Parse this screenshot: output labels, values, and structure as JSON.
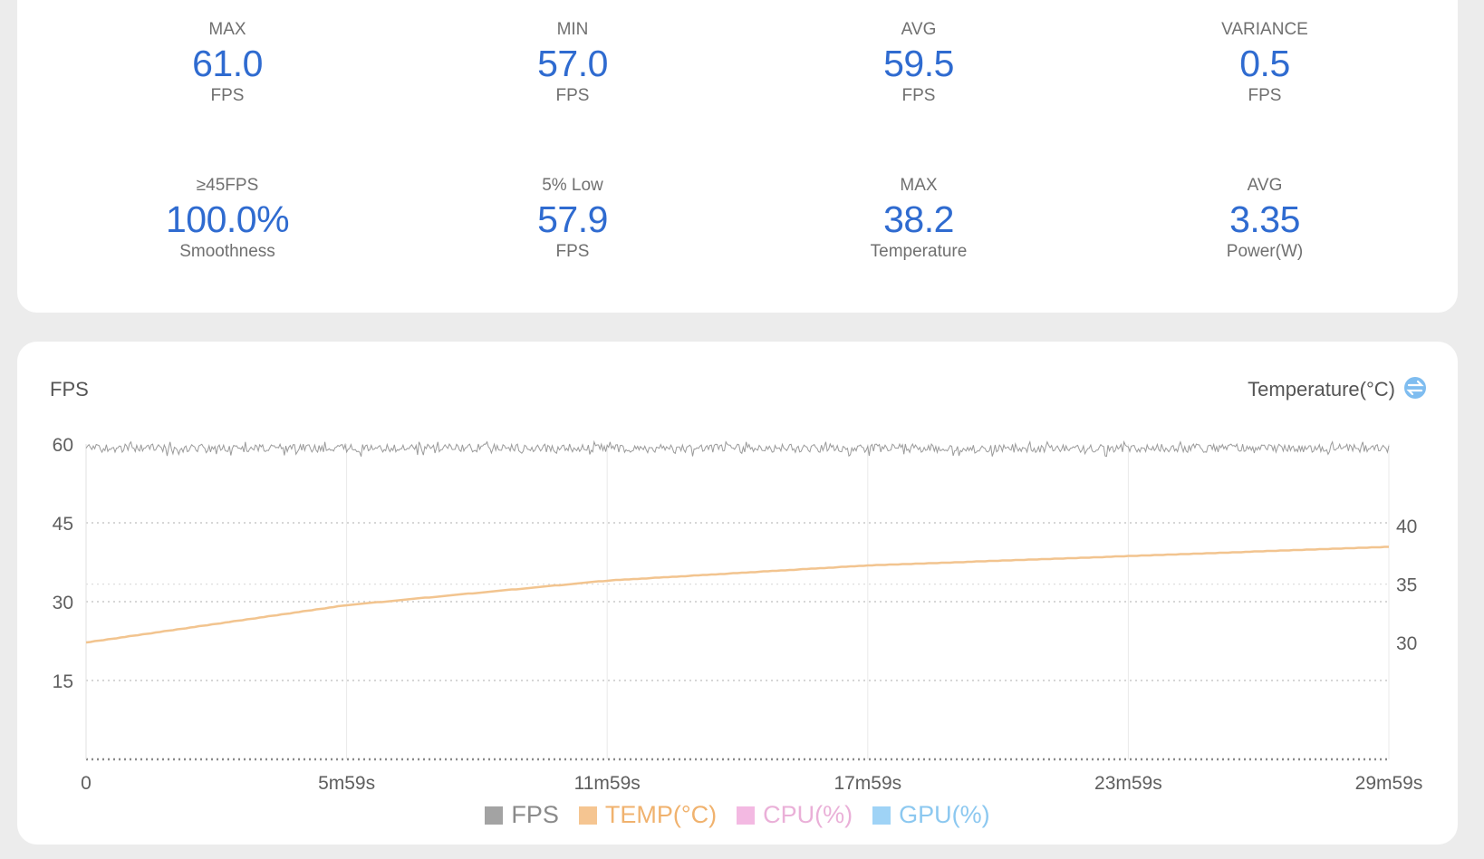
{
  "stats": [
    {
      "label": "MAX",
      "value": "61.0",
      "unit": "FPS"
    },
    {
      "label": "MIN",
      "value": "57.0",
      "unit": "FPS"
    },
    {
      "label": "AVG",
      "value": "59.5",
      "unit": "FPS"
    },
    {
      "label": "VARIANCE",
      "value": "0.5",
      "unit": "FPS"
    },
    {
      "label": "≥45FPS",
      "value": "100.0%",
      "unit": "Smoothness"
    },
    {
      "label": "5% Low",
      "value": "57.9",
      "unit": "FPS"
    },
    {
      "label": "MAX",
      "value": "38.2",
      "unit": "Temperature"
    },
    {
      "label": "AVG",
      "value": "3.35",
      "unit": "Power(W)"
    }
  ],
  "chart": {
    "left_title": "FPS",
    "right_title": "Temperature(°C)",
    "switch_icon": "swap-circle-icon"
  },
  "chart_data": {
    "type": "line",
    "x_ticks": [
      "0",
      "5m59s",
      "11m59s",
      "17m59s",
      "23m59s",
      "29m59s"
    ],
    "x_range_seconds": [
      0,
      1799
    ],
    "y_left": {
      "label": "FPS",
      "ticks": [
        60,
        45,
        30,
        15
      ],
      "range": [
        0,
        60
      ]
    },
    "y_right": {
      "label": "Temperature(°C)",
      "ticks": [
        40,
        35,
        30
      ],
      "range": [
        20,
        47
      ]
    },
    "series": [
      {
        "name": "FPS",
        "axis": "left",
        "color": "#9a9a9a",
        "approx_value": 59.5,
        "min": 57.0,
        "max": 61.0
      },
      {
        "name": "TEMP(°C)",
        "axis": "right",
        "color": "#f2c48f",
        "x_minutes": [
          0,
          6,
          12,
          18,
          24,
          30
        ],
        "values": [
          30.0,
          33.2,
          35.3,
          36.6,
          37.4,
          38.2
        ]
      }
    ],
    "legend": [
      {
        "name": "FPS",
        "color": "#a3a3a3",
        "text_color": "#8a8a8a"
      },
      {
        "name": "TEMP(°C)",
        "color": "#f5c591",
        "text_color": "#f0b26e"
      },
      {
        "name": "CPU(%)",
        "color": "#f3b9e2",
        "text_color": "#eab0d8"
      },
      {
        "name": "GPU(%)",
        "color": "#9fd3f6",
        "text_color": "#8cc8f0"
      }
    ]
  }
}
